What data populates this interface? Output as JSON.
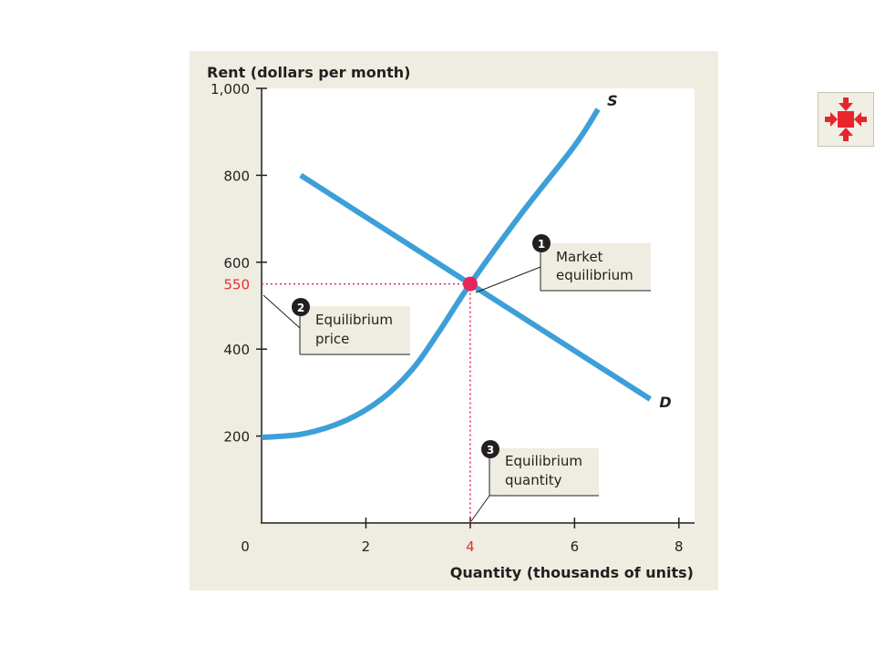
{
  "chart_data": {
    "type": "line",
    "ylabel": "Rent (dollars per month)",
    "xlabel": "Quantity (thousands of units)",
    "xlim": [
      0,
      8.3
    ],
    "ylim": [
      0,
      1000
    ],
    "x_ticks": [
      2,
      4,
      6,
      8
    ],
    "x_tick_labels": [
      "2",
      "4",
      "6",
      "8"
    ],
    "y_ticks": [
      200,
      400,
      600,
      800,
      1000
    ],
    "y_tick_labels": [
      "200",
      "400",
      "600",
      "800",
      "1,000"
    ],
    "origin_label": "0",
    "series": [
      {
        "name": "S",
        "color": "#3d9fd8",
        "points": [
          [
            0,
            197
          ],
          [
            0.8,
            205
          ],
          [
            1.6,
            235
          ],
          [
            2.3,
            285
          ],
          [
            2.9,
            355
          ],
          [
            3.4,
            440
          ],
          [
            4.0,
            550
          ],
          [
            5.0,
            715
          ],
          [
            6.0,
            868
          ],
          [
            6.45,
            952
          ]
        ]
      },
      {
        "name": "D",
        "color": "#3d9fd8",
        "points": [
          [
            0.75,
            800
          ],
          [
            4.0,
            550
          ],
          [
            7.45,
            285
          ]
        ]
      }
    ],
    "equilibrium": {
      "quantity": 4,
      "price": 550,
      "quantity_label": "4",
      "price_label": "550",
      "highlight_color": "#e0322e",
      "point_color": "#e8255a"
    },
    "annotations": [
      {
        "number": "1",
        "lines": [
          "Market",
          "equilibrium"
        ]
      },
      {
        "number": "2",
        "lines": [
          "Equilibrium",
          "price"
        ]
      },
      {
        "number": "3",
        "lines": [
          "Equilibrium",
          "quantity"
        ]
      }
    ]
  },
  "nav_button": {
    "icon": "collapse-arrows-icon",
    "color": "#e8252a"
  }
}
